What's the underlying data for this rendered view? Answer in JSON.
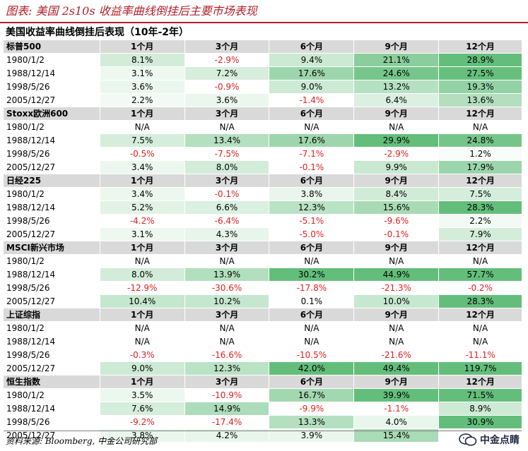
{
  "figure_title": "图表: 美国 2s10s 收益率曲线倒挂后主要市场表现",
  "table_title": "美国收益率曲线倒挂后表现（10年-2年）",
  "source": "资料来源: Bloomberg, 中金公司研究部",
  "watermark": "中金点睛",
  "colors": {
    "title_red": "#b01e2a",
    "negative_text": "#e02020",
    "header_gray": "#d9d9d9"
  },
  "sections": [
    {
      "name": "标普500",
      "headers": [
        "1个月",
        "3个月",
        "6个月",
        "9个月",
        "12个月"
      ],
      "rows": [
        {
          "date": "1980/1/2",
          "values": [
            "8.1%",
            "-2.9%",
            "9.4%",
            "21.1%",
            "28.9%"
          ]
        },
        {
          "date": "1988/12/14",
          "values": [
            "3.1%",
            "7.2%",
            "17.6%",
            "24.6%",
            "27.5%"
          ]
        },
        {
          "date": "1998/5/26",
          "values": [
            "3.6%",
            "-0.9%",
            "9.0%",
            "13.2%",
            "19.3%"
          ]
        },
        {
          "date": "2005/12/27",
          "values": [
            "2.2%",
            "3.6%",
            "-1.4%",
            "6.4%",
            "13.6%"
          ]
        }
      ]
    },
    {
      "name": "Stoxx欧洲600",
      "headers": [
        "1个月",
        "3个月",
        "6个月",
        "9个月",
        "12个月"
      ],
      "rows": [
        {
          "date": "1980/1/2",
          "values": [
            "N/A",
            "N/A",
            "N/A",
            "N/A",
            "N/A"
          ]
        },
        {
          "date": "1988/12/14",
          "values": [
            "7.5%",
            "13.4%",
            "17.6%",
            "29.9%",
            "24.8%"
          ]
        },
        {
          "date": "1998/5/26",
          "values": [
            "-0.5%",
            "-7.5%",
            "-7.1%",
            "-2.9%",
            "1.2%"
          ]
        },
        {
          "date": "2005/12/27",
          "values": [
            "3.4%",
            "8.0%",
            "-0.1%",
            "9.9%",
            "17.9%"
          ]
        }
      ]
    },
    {
      "name": "日经225",
      "headers": [
        "1个月",
        "3个月",
        "6个月",
        "9个月",
        "12个月"
      ],
      "rows": [
        {
          "date": "1980/1/2",
          "values": [
            "3.4%",
            "-0.1%",
            "3.8%",
            "8.4%",
            "7.5%"
          ]
        },
        {
          "date": "1988/12/14",
          "values": [
            "5.2%",
            "6.6%",
            "12.3%",
            "15.6%",
            "28.3%"
          ]
        },
        {
          "date": "1998/5/26",
          "values": [
            "-4.2%",
            "-6.4%",
            "-5.1%",
            "-9.6%",
            "2.2%"
          ]
        },
        {
          "date": "2005/12/27",
          "values": [
            "3.1%",
            "4.3%",
            "-5.0%",
            "-0.1%",
            "7.9%"
          ]
        }
      ]
    },
    {
      "name": "MSCI新兴市场",
      "headers": [
        "1个月",
        "3个月",
        "6个月",
        "9个月",
        "12个月"
      ],
      "rows": [
        {
          "date": "1980/1/2",
          "values": [
            "N/A",
            "N/A",
            "N/A",
            "N/A",
            "N/A"
          ]
        },
        {
          "date": "1988/12/14",
          "values": [
            "8.0%",
            "13.9%",
            "30.2%",
            "44.9%",
            "57.7%"
          ]
        },
        {
          "date": "1998/5/26",
          "values": [
            "-12.9%",
            "-30.6%",
            "-17.8%",
            "-21.3%",
            "-0.2%"
          ]
        },
        {
          "date": "2005/12/27",
          "values": [
            "10.4%",
            "10.2%",
            "0.1%",
            "10.0%",
            "28.3%"
          ]
        }
      ]
    },
    {
      "name": "上证综指",
      "headers": [
        "1个月",
        "3个月",
        "6个月",
        "9个月",
        "12个月"
      ],
      "rows": [
        {
          "date": "1980/1/2",
          "values": [
            "N/A",
            "N/A",
            "N/A",
            "N/A",
            "N/A"
          ]
        },
        {
          "date": "1988/12/14",
          "values": [
            "N/A",
            "N/A",
            "N/A",
            "N/A",
            "N/A"
          ]
        },
        {
          "date": "1998/5/26",
          "values": [
            "-0.3%",
            "-16.6%",
            "-10.5%",
            "-21.6%",
            "-11.1%"
          ]
        },
        {
          "date": "2005/12/27",
          "values": [
            "9.0%",
            "12.3%",
            "42.0%",
            "49.4%",
            "119.7%"
          ]
        }
      ]
    },
    {
      "name": "恒生指数",
      "headers": [
        "1个月",
        "3个月",
        "6个月",
        "9个月",
        "12个月"
      ],
      "rows": [
        {
          "date": "1980/1/2",
          "values": [
            "3.5%",
            "-10.9%",
            "16.7%",
            "39.9%",
            "71.5%"
          ]
        },
        {
          "date": "1988/12/14",
          "values": [
            "7.6%",
            "14.9%",
            "-9.9%",
            "-1.1%",
            "8.9%"
          ]
        },
        {
          "date": "1998/5/26",
          "values": [
            "-9.2%",
            "-17.4%",
            "13.3%",
            "4.0%",
            "30.9%"
          ]
        },
        {
          "date": "2005/12/27",
          "values": [
            "3.8%",
            "4.2%",
            "3.9%",
            "15.4%",
            ""
          ]
        }
      ]
    }
  ]
}
